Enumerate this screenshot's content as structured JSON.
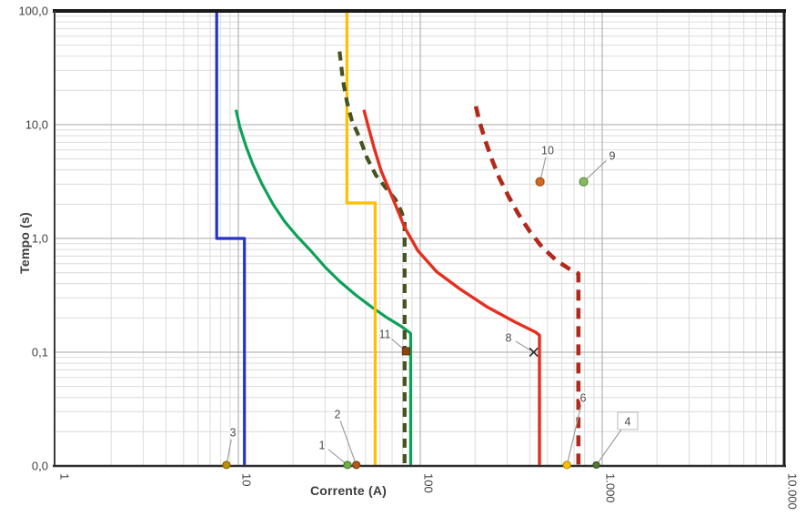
{
  "chart_data": {
    "type": "line",
    "title": "",
    "xlabel": "Corrente (A)",
    "ylabel": "Tempo (s)",
    "x_scale": "log",
    "y_scale": "log",
    "xlim": [
      1,
      10000
    ],
    "ylim": [
      0.01,
      100
    ],
    "grid": {
      "on": true,
      "minor_color": "#dcdcdc",
      "major_color": "#b9b9b9"
    },
    "frame": {
      "top_color": "#1a1a1a",
      "side_color": "#3a3a3a",
      "bottom_color": "#2e2e2e"
    },
    "x_ticks": [
      {
        "v": 1,
        "label": "1"
      },
      {
        "v": 10,
        "label": "10"
      },
      {
        "v": 100,
        "label": "100"
      },
      {
        "v": 1000,
        "label": "1.000"
      },
      {
        "v": 10000,
        "label": "10.000"
      }
    ],
    "y_ticks": [
      {
        "v": 100,
        "label": "100,0"
      },
      {
        "v": 10,
        "label": "10,0"
      },
      {
        "v": 1,
        "label": "1,0"
      },
      {
        "v": 0.1,
        "label": "0,1"
      },
      {
        "v": 0.01,
        "label": "0,0"
      }
    ],
    "series": [
      {
        "name": "relay-blue",
        "color": "#2433c8",
        "style": "solid",
        "width": 3.2,
        "points": [
          [
            7.6,
            100
          ],
          [
            7.6,
            1.0
          ],
          [
            10.8,
            1.0
          ],
          [
            10.8,
            0.0102
          ]
        ]
      },
      {
        "name": "fuse-green",
        "color": "#0da157",
        "style": "solid",
        "width": 3.2,
        "points": [
          [
            9.7,
            13.5
          ],
          [
            10.2,
            9.5
          ],
          [
            11,
            6.5
          ],
          [
            12,
            4.5
          ],
          [
            13.5,
            3.0
          ],
          [
            15.5,
            2.0
          ],
          [
            18,
            1.4
          ],
          [
            21,
            1.05
          ],
          [
            25,
            0.78
          ],
          [
            30,
            0.56
          ],
          [
            36,
            0.42
          ],
          [
            44,
            0.32
          ],
          [
            54,
            0.25
          ],
          [
            66,
            0.2
          ],
          [
            78,
            0.17
          ],
          [
            87,
            0.15
          ],
          [
            88.5,
            0.145
          ],
          [
            88.5,
            0.0102
          ]
        ]
      },
      {
        "name": "relay-yellow",
        "color": "#ffc000",
        "style": "solid",
        "width": 3.2,
        "points": [
          [
            39.5,
            100
          ],
          [
            39.5,
            2.05
          ],
          [
            56.5,
            2.05
          ],
          [
            56.5,
            0.0102
          ]
        ]
      },
      {
        "name": "fuse-olive-dashed",
        "color": "#44531f",
        "style": "dashed",
        "width": 4.2,
        "dash": "10 7",
        "points": [
          [
            36,
            44
          ],
          [
            37.5,
            25
          ],
          [
            39.5,
            16
          ],
          [
            42,
            11
          ],
          [
            46.5,
            7.6
          ],
          [
            51,
            5.1
          ],
          [
            57,
            3.6
          ],
          [
            65,
            2.75
          ],
          [
            73,
            2.2
          ],
          [
            79,
            1.7
          ],
          [
            82,
            1.4
          ],
          [
            82,
            0.0102
          ]
        ]
      },
      {
        "name": "relay-red",
        "color": "#e62e1f",
        "style": "solid",
        "width": 3.4,
        "points": [
          [
            49,
            13.5
          ],
          [
            52,
            9.4
          ],
          [
            56,
            6.1
          ],
          [
            61,
            3.9
          ],
          [
            71,
            2.2
          ],
          [
            82,
            1.25
          ],
          [
            97,
            0.78
          ],
          [
            123,
            0.51
          ],
          [
            165,
            0.36
          ],
          [
            233,
            0.25
          ],
          [
            330,
            0.185
          ],
          [
            430,
            0.15
          ],
          [
            452,
            0.141
          ],
          [
            452,
            0.0102
          ]
        ]
      },
      {
        "name": "relay-darkred-dashed",
        "color": "#b02a1c",
        "style": "dashed",
        "width": 4.6,
        "dash": "12 8",
        "points": [
          [
            202,
            14.5
          ],
          [
            212,
            10.5
          ],
          [
            228,
            7.2
          ],
          [
            248,
            4.9
          ],
          [
            272,
            3.4
          ],
          [
            305,
            2.35
          ],
          [
            345,
            1.65
          ],
          [
            400,
            1.15
          ],
          [
            470,
            0.83
          ],
          [
            560,
            0.64
          ],
          [
            660,
            0.54
          ],
          [
            740,
            0.49
          ],
          [
            740,
            0.0102
          ]
        ]
      }
    ],
    "markers": [
      {
        "id": "1",
        "shape": "circle",
        "fill": "#6fad47",
        "edge": "#4e7a31",
        "r": 4,
        "x": 39.8,
        "y": 0.0102
      },
      {
        "id": "2",
        "shape": "circle",
        "fill": "#ad5a1e",
        "edge": "#7d3f12",
        "r": 4,
        "x": 44.5,
        "y": 0.0102
      },
      {
        "id": "3",
        "shape": "circle",
        "fill": "#bf9000",
        "edge": "#8a6800",
        "r": 4,
        "x": 8.6,
        "y": 0.0102
      },
      {
        "id": "4",
        "shape": "circle",
        "fill": "#4e7a31",
        "edge": "#375623",
        "r": 3.5,
        "x": 928,
        "y": 0.0102
      },
      {
        "id": "6",
        "shape": "circle",
        "fill": "#ffc000",
        "edge": "#bf9000",
        "r": 4,
        "x": 640,
        "y": 0.0102
      },
      {
        "id": "8",
        "shape": "x",
        "fill": "#2b2b2b",
        "edge": "#2b2b2b",
        "r": 4.5,
        "x": 420,
        "y": 0.1
      },
      {
        "id": "9",
        "shape": "circle",
        "fill": "#84bb60",
        "edge": "#5d8f3f",
        "r": 4.5,
        "x": 790,
        "y": 3.15
      },
      {
        "id": "10",
        "shape": "circle",
        "fill": "#d2691e",
        "edge": "#9c4e14",
        "r": 4.5,
        "x": 455,
        "y": 3.15
      },
      {
        "id": "11",
        "shape": "square",
        "fill": "#8b4513",
        "edge": "#5e2f0d",
        "r": 4,
        "x": 83.5,
        "y": 0.102
      }
    ],
    "callouts": [
      {
        "label": "1",
        "target": "1",
        "lx": 354,
        "ly": 489,
        "boxed": false
      },
      {
        "label": "2",
        "target": "2",
        "lx": 371,
        "ly": 455,
        "boxed": false
      },
      {
        "label": "3",
        "target": "3",
        "lx": 256,
        "ly": 475,
        "boxed": false
      },
      {
        "label": "4",
        "target": "4",
        "lx": 690,
        "ly": 463,
        "boxed": true
      },
      {
        "label": "6",
        "target": "6",
        "lx": 641,
        "ly": 437,
        "boxed": false
      },
      {
        "label": "8",
        "target": "8",
        "lx": 559,
        "ly": 371,
        "boxed": false
      },
      {
        "label": "9",
        "target": "9",
        "lx": 673,
        "ly": 171,
        "boxed": false
      },
      {
        "label": "10",
        "target": "10",
        "lx": 602,
        "ly": 165,
        "boxed": false
      },
      {
        "label": "11",
        "target": "11",
        "lx": 423,
        "ly": 367,
        "boxed": false
      }
    ],
    "callout_style": {
      "text_color": "#4a4a4a",
      "leader_color": "#9e9e9e",
      "box_border": "#b8b8b8"
    }
  }
}
